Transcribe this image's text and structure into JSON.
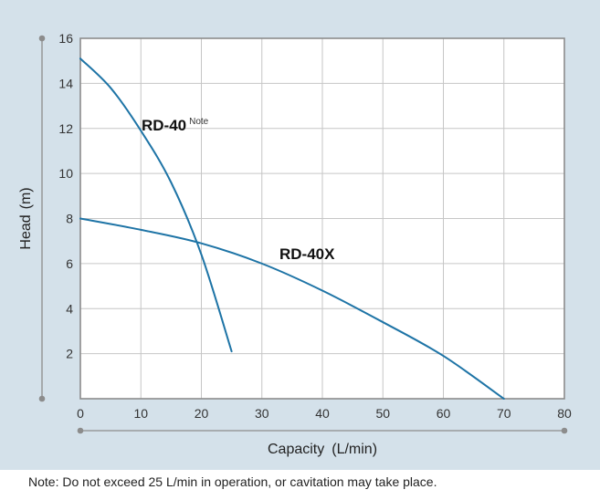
{
  "colors": {
    "panel_bg": "#d4e1ea",
    "plot_bg": "#ffffff",
    "grid": "#c6c6c6",
    "axis": "#8c8c8c",
    "curve": "#1e74a6",
    "text": "#111111"
  },
  "note": "Note: Do not exceed 25 L/min in operation, or cavitation may take place.",
  "chart_data": {
    "type": "line",
    "title": "",
    "xlabel": "Capacity",
    "xunit": "(L/min)",
    "ylabel": "Head",
    "yunit": "(m)",
    "xlim": [
      0,
      80
    ],
    "ylim": [
      0,
      16
    ],
    "xticks": [
      0,
      10,
      20,
      30,
      40,
      50,
      60,
      70,
      80
    ],
    "yticks": [
      2,
      4,
      6,
      8,
      10,
      12,
      14,
      16
    ],
    "grid": true,
    "series": [
      {
        "name": "RD-40",
        "label_suffix": "Note",
        "x": [
          0,
          5,
          10,
          15,
          20,
          25
        ],
        "y": [
          15.1,
          13.8,
          11.9,
          9.6,
          6.4,
          2.1
        ]
      },
      {
        "name": "RD-40X",
        "x": [
          0,
          10,
          20,
          30,
          40,
          50,
          60,
          70
        ],
        "y": [
          8.0,
          7.5,
          6.9,
          6.0,
          4.8,
          3.4,
          1.9,
          0.0
        ]
      }
    ]
  }
}
